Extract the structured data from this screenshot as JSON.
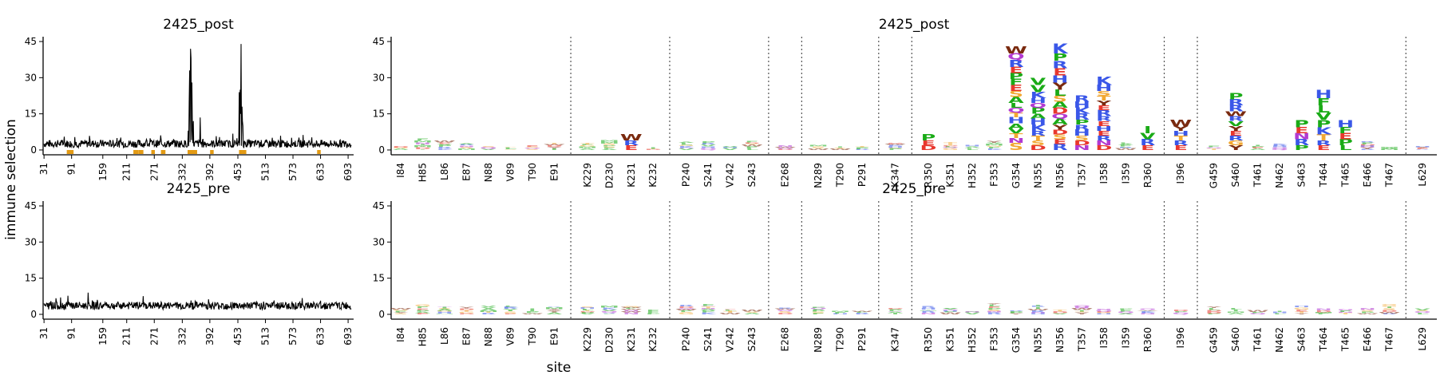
{
  "chart_data": {
    "type": "logo_plot",
    "xlabel": "site",
    "ylabel": "immune selection",
    "yticks": [
      0,
      15,
      30,
      45
    ],
    "ylim": [
      -2,
      47
    ],
    "colors": {
      "H": "#3a57e8",
      "K": "#3a57e8",
      "R": "#3a57e8",
      "D": "#e8372d",
      "E": "#e8372d",
      "P": "#1aab17",
      "V": "#1aab17",
      "L": "#1aab17",
      "I": "#1aab17",
      "M": "#1aab17",
      "A": "#1aab17",
      "F": "#1aab17",
      "W": "#7a2a0f",
      "Y": "#7a2a0f",
      "S": "#f2a833",
      "T": "#f2a833",
      "G": "#f2a833",
      "C": "#e2b400",
      "N": "#b23ad1",
      "Q": "#b23ad1",
      "line": "#000000",
      "highlight": "#e39b14",
      "separator": "#555555"
    },
    "panels": [
      {
        "title": "2425_post",
        "kind": "line",
        "xlim": [
          29,
          705
        ],
        "xticks": [
          "31",
          "91",
          "159",
          "211",
          "271",
          "332",
          "392",
          "453",
          "513",
          "573",
          "633",
          "693"
        ],
        "baseline": 2.6,
        "peaks": [
          {
            "site": 348,
            "value": 33
          },
          {
            "site": 350,
            "value": 42
          },
          {
            "site": 351,
            "value": 38
          },
          {
            "site": 353,
            "value": 28
          },
          {
            "site": 347,
            "value": 20
          },
          {
            "site": 345,
            "value": 8
          },
          {
            "site": 354,
            "value": 9
          },
          {
            "site": 356,
            "value": 12
          },
          {
            "site": 371,
            "value": 13.5
          },
          {
            "site": 456,
            "value": 24
          },
          {
            "site": 458,
            "value": 25
          },
          {
            "site": 460,
            "value": 44
          },
          {
            "site": 462,
            "value": 18
          },
          {
            "site": 464,
            "value": 10
          },
          {
            "site": 463,
            "value": 12
          },
          {
            "site": 459,
            "value": 15
          }
        ],
        "highlight_sites": [
          84,
          85,
          86,
          87,
          88,
          89,
          90,
          91,
          229,
          230,
          231,
          232,
          240,
          241,
          242,
          243,
          268,
          289,
          290,
          291,
          347,
          350,
          351,
          352,
          353,
          354,
          355,
          356,
          357,
          358,
          359,
          360,
          396,
          459,
          460,
          461,
          462,
          463,
          464,
          465,
          466,
          467,
          629
        ]
      },
      {
        "title": "2425_post",
        "kind": "logo",
        "sites": [
          "I84",
          "H85",
          "L86",
          "E87",
          "N88",
          "V89",
          "T90",
          "E91",
          "K229",
          "D230",
          "K231",
          "K232",
          "P240",
          "S241",
          "V242",
          "S243",
          "E268",
          "N289",
          "T290",
          "P291",
          "K347",
          "R350",
          "K351",
          "H352",
          "F353",
          "G354",
          "N355",
          "N356",
          "T357",
          "I358",
          "I359",
          "R360",
          "I396",
          "G459",
          "S460",
          "T461",
          "N462",
          "S463",
          "T464",
          "T465",
          "E466",
          "T467",
          "L629"
        ],
        "separators_after": [
          7,
          11,
          15,
          16,
          19,
          20,
          31,
          32,
          41
        ],
        "stacks": {
          "G354": [
            [
              "S",
              3
            ],
            [
              "N",
              2
            ],
            [
              "T",
              2
            ],
            [
              "V",
              2
            ],
            [
              "A",
              2
            ],
            [
              "H",
              2.5
            ],
            [
              "T",
              2
            ],
            [
              "Q",
              2
            ],
            [
              "L",
              2
            ],
            [
              "A",
              2.5
            ],
            [
              "S",
              2.5
            ],
            [
              "E",
              2.5
            ],
            [
              "F",
              2.5
            ],
            [
              "P",
              2.5
            ],
            [
              "E",
              2.5
            ],
            [
              "R",
              3
            ],
            [
              "Q",
              2.5
            ],
            [
              "W",
              3
            ]
          ],
          "N355": [
            [
              "D",
              2
            ],
            [
              "S",
              2
            ],
            [
              "T",
              2
            ],
            [
              "R",
              2
            ],
            [
              "K",
              2.5
            ],
            [
              "H",
              2.5
            ],
            [
              "A",
              2
            ],
            [
              "P",
              2.5
            ],
            [
              "Q",
              2
            ],
            [
              "H",
              2
            ],
            [
              "K",
              2.5
            ],
            [
              "V",
              3
            ],
            [
              "V",
              3
            ]
          ],
          "N356": [
            [
              "R",
              2.5
            ],
            [
              "E",
              2
            ],
            [
              "S",
              2
            ],
            [
              "D",
              2
            ],
            [
              "Y",
              2
            ],
            [
              "A",
              2.5
            ],
            [
              "Q",
              2
            ],
            [
              "D",
              2.5
            ],
            [
              "A",
              2.5
            ],
            [
              "S",
              2.5
            ],
            [
              "L",
              2.5
            ],
            [
              "Y",
              3
            ],
            [
              "H",
              3
            ],
            [
              "E",
              3
            ],
            [
              "R",
              3
            ],
            [
              "P",
              3
            ],
            [
              "K",
              4
            ]
          ],
          "T357": [
            [
              "N",
              2
            ],
            [
              "D",
              2
            ],
            [
              "S",
              2
            ],
            [
              "H",
              2.5
            ],
            [
              "R",
              2
            ],
            [
              "P",
              2
            ],
            [
              "R",
              2.5
            ],
            [
              "K",
              2.5
            ],
            [
              "H",
              2.5
            ],
            [
              "R",
              2.5
            ]
          ],
          "I358": [
            [
              "D",
              2
            ],
            [
              "N",
              2
            ],
            [
              "R",
              2
            ],
            [
              "E",
              2
            ],
            [
              "H",
              2
            ],
            [
              "E",
              2
            ],
            [
              "R",
              2
            ],
            [
              "R",
              2.5
            ],
            [
              "E",
              2
            ],
            [
              "Y",
              2
            ],
            [
              "T",
              2
            ],
            [
              "S",
              2
            ],
            [
              "H",
              2.5
            ],
            [
              "K",
              3.5
            ]
          ],
          "S460": [
            [
              "Y",
              2
            ],
            [
              "G",
              2
            ],
            [
              "R",
              2
            ],
            [
              "E",
              2
            ],
            [
              "Y",
              2
            ],
            [
              "V",
              2
            ],
            [
              "R",
              2
            ],
            [
              "W",
              2
            ],
            [
              "R",
              2.5
            ],
            [
              "R",
              2.5
            ],
            [
              "P",
              2.5
            ]
          ],
          "T464": [
            [
              "E",
              2
            ],
            [
              "R",
              2
            ],
            [
              "T",
              2.5
            ],
            [
              "K",
              3
            ],
            [
              "P",
              3
            ],
            [
              "V",
              3
            ],
            [
              "L",
              3
            ],
            [
              "F",
              3
            ],
            [
              "H",
              3.5
            ]
          ],
          "S463": [
            [
              "P",
              2
            ],
            [
              "R",
              2.5
            ],
            [
              "N",
              2.5
            ],
            [
              "E",
              2.5
            ],
            [
              "P",
              3
            ]
          ],
          "T465": [
            [
              "L",
              2
            ],
            [
              "P",
              2.5
            ],
            [
              "E",
              2.5
            ],
            [
              "F",
              2.5
            ],
            [
              "H",
              3
            ]
          ],
          "R360": [
            [
              "E",
              2
            ],
            [
              "R",
              2.5
            ],
            [
              "V",
              2.5
            ],
            [
              "I",
              3
            ]
          ],
          "I396": [
            [
              "E",
              2
            ],
            [
              "R",
              2
            ],
            [
              "T",
              2
            ],
            [
              "H",
              2
            ],
            [
              "Y",
              2
            ],
            [
              "W",
              2.5
            ]
          ],
          "K231": [
            [
              "E",
              2
            ],
            [
              "R",
              2
            ],
            [
              "W",
              2.5
            ]
          ],
          "R350": [
            [
              "D",
              2
            ],
            [
              "E",
              2
            ],
            [
              "P",
              2.5
            ]
          ]
        }
      },
      {
        "title": "2425_pre",
        "kind": "line",
        "xlim": [
          29,
          705
        ],
        "xticks": [
          "31",
          "91",
          "159",
          "211",
          "271",
          "332",
          "392",
          "453",
          "513",
          "573",
          "633",
          "693"
        ],
        "baseline": 3.6
      },
      {
        "title": "2425_pre",
        "kind": "logo",
        "sites": [
          "I84",
          "H85",
          "L86",
          "E87",
          "N88",
          "V89",
          "T90",
          "E91",
          "K229",
          "D230",
          "K231",
          "K232",
          "P240",
          "S241",
          "V242",
          "S243",
          "E268",
          "N289",
          "T290",
          "P291",
          "K347",
          "R350",
          "K351",
          "H352",
          "F353",
          "G354",
          "N355",
          "N356",
          "T357",
          "I358",
          "I359",
          "R360",
          "I396",
          "G459",
          "S460",
          "T461",
          "N462",
          "S463",
          "T464",
          "T465",
          "E466",
          "T467",
          "L629"
        ],
        "separators_after": [
          7,
          11,
          15,
          16,
          19,
          20,
          31,
          32,
          41
        ]
      }
    ]
  }
}
